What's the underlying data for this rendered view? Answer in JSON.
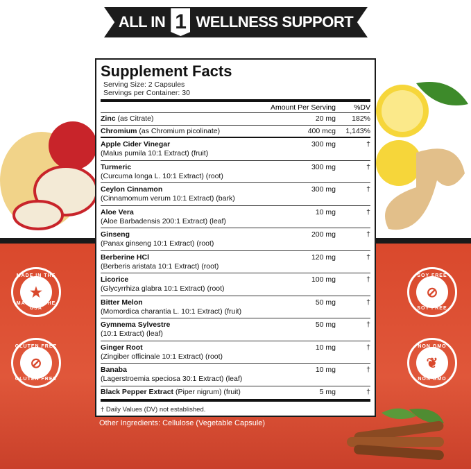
{
  "banner": {
    "prefix": "ALL IN",
    "number": "1",
    "suffix": "WELLNESS SUPPORT"
  },
  "facts": {
    "title": "Supplement Facts",
    "serving_size": "Serving Size: 2 Capsules",
    "servings_per_container": "Servings per Container: 30",
    "col_amount": "Amount Per Serving",
    "col_dv": "%DV",
    "rows": [
      {
        "name": "Zinc",
        "detail": "(as Citrate)",
        "amount": "20 mg",
        "dv": "182%",
        "inline": true
      },
      {
        "name": "Chromium",
        "detail": "(as Chromium picolinate)",
        "amount": "400 mcg",
        "dv": "1,143%",
        "inline": true
      },
      {
        "name": "Apple Cider Vinegar",
        "detail": "(Malus pumila 10:1 Extract) (fruit)",
        "amount": "300 mg",
        "dv": "†"
      },
      {
        "name": "Turmeric",
        "detail": "(Curcuma longa L. 10:1 Extract) (root)",
        "amount": "300 mg",
        "dv": "†"
      },
      {
        "name": "Ceylon Cinnamon",
        "detail": "(Cinnamomum verum 10:1 Extract) (bark)",
        "amount": "300 mg",
        "dv": "†"
      },
      {
        "name": "Aloe Vera",
        "detail": "(Aloe Barbadensis 200:1 Extract) (leaf)",
        "amount": "10 mg",
        "dv": "†"
      },
      {
        "name": "Ginseng",
        "detail": "(Panax ginseng 10:1 Extract) (root)",
        "amount": "200 mg",
        "dv": "†"
      },
      {
        "name": "Berberine HCl",
        "detail": "(Berberis aristata 10:1 Extract) (root)",
        "amount": "120 mg",
        "dv": "†"
      },
      {
        "name": "Licorice",
        "detail": "(Glycyrrhiza glabra 10:1 Extract) (root)",
        "amount": "100 mg",
        "dv": "†"
      },
      {
        "name": "Bitter Melon",
        "detail": "(Momordica charantia L. 10:1 Extract) (fruit)",
        "amount": "50 mg",
        "dv": "†"
      },
      {
        "name": "Gymnema Sylvestre",
        "detail": "(10:1 Extract) (leaf)",
        "amount": "50 mg",
        "dv": "†"
      },
      {
        "name": "Ginger Root",
        "detail": "(Zingiber officinale 10:1 Extract) (root)",
        "amount": "10 mg",
        "dv": "†"
      },
      {
        "name": "Banaba",
        "detail": "(Lagerstroemia speciosa 30:1 Extract) (leaf)",
        "amount": "10 mg",
        "dv": "†"
      },
      {
        "name": "Black Pepper Extract",
        "detail": "(Piper nigrum) (fruit)",
        "amount": "5 mg",
        "dv": "†",
        "inline": true
      }
    ],
    "footnote": "† Daily Values (DV) not established."
  },
  "other_ingredients": "Other Ingredients: Cellulose (Vegetable Capsule)",
  "badges": [
    {
      "top": "MADE IN THE USA",
      "bottom": "MADE IN THE USA",
      "icon": "us-flag-icon"
    },
    {
      "top": "GLUTEN FREE",
      "bottom": "GLUTEN FREE",
      "icon": "wheat-crossed-icon"
    },
    {
      "top": "SOY FREE",
      "bottom": "SOY FREE",
      "icon": "soy-crossed-icon"
    },
    {
      "top": "NON GMO",
      "bottom": "NON GMO",
      "icon": "leaf-icon"
    }
  ],
  "colors": {
    "accent": "#d9482c",
    "dark": "#1c1c1c"
  }
}
